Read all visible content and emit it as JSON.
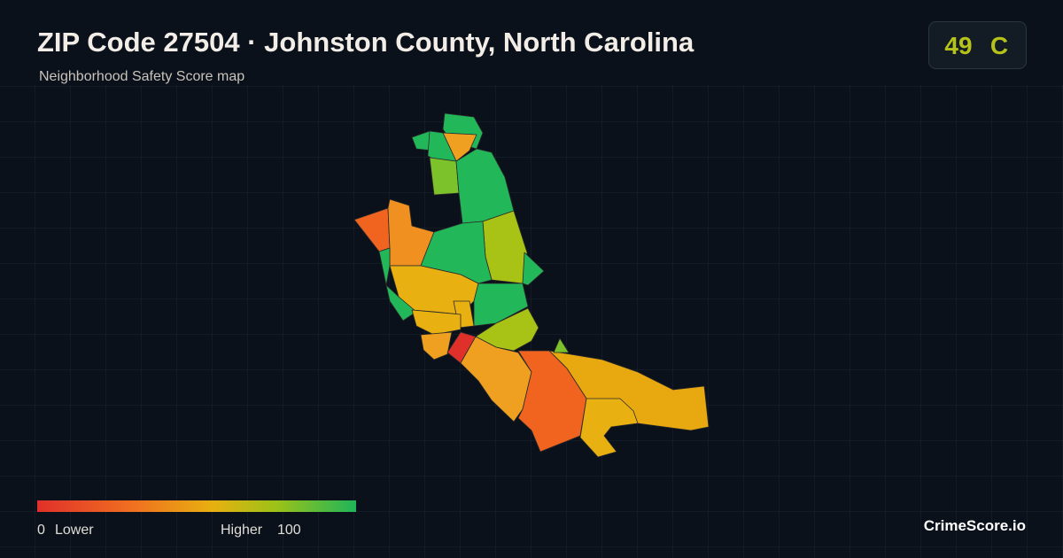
{
  "header": {
    "title": "ZIP Code 27504 · Johnston County, North Carolina",
    "subtitle": "Neighborhood Safety Score map"
  },
  "score": {
    "value": 49,
    "grade": "C"
  },
  "legend": {
    "min": 0,
    "min_label": "Lower",
    "max_label": "Higher",
    "max": 100
  },
  "footer": {
    "brand": "CrimeScore.io"
  }
}
